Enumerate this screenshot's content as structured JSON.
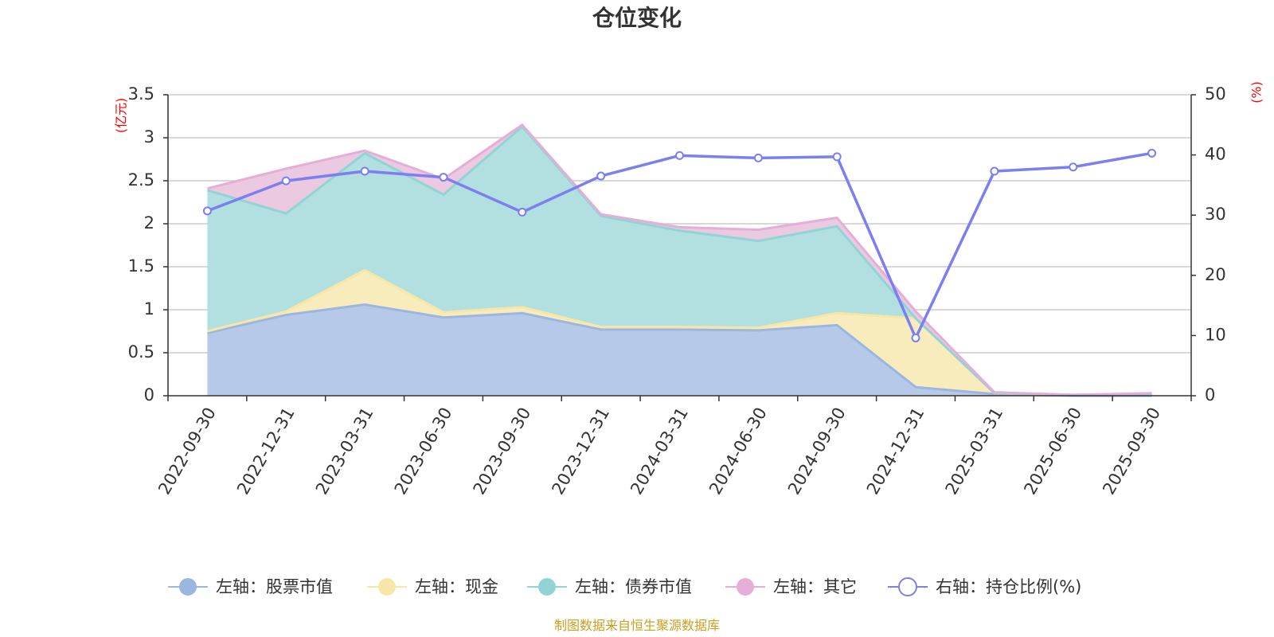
{
  "chart_data": {
    "type": "area",
    "title": "仓位变化",
    "categories": [
      "2022-09-30",
      "2022-12-31",
      "2023-03-31",
      "2023-06-30",
      "2023-09-30",
      "2023-12-31",
      "2024-03-31",
      "2024-06-30",
      "2024-09-30",
      "2024-12-31",
      "2025-03-31",
      "2025-06-30",
      "2025-09-30"
    ],
    "left_axis": {
      "unit": "(亿元)",
      "ylim": [
        0,
        3.5
      ],
      "ticks": [
        "0",
        "0.5",
        "1",
        "1.5",
        "2",
        "2.5",
        "3",
        "3.5"
      ]
    },
    "right_axis": {
      "unit": "(%)",
      "ylim": [
        0,
        50
      ],
      "ticks": [
        "0",
        "10",
        "20",
        "30",
        "40",
        "50"
      ]
    },
    "stacked_series": [
      {
        "name": "左轴：股票市值",
        "color": "#9bb6e0",
        "fill": "#b7c9e9",
        "values": [
          0.73,
          0.94,
          1.06,
          0.91,
          0.96,
          0.77,
          0.77,
          0.76,
          0.82,
          0.1,
          0.02,
          0.0,
          0.0
        ]
      },
      {
        "name": "左轴：现金",
        "color": "#f7e7a6",
        "fill": "#f8ecbc",
        "values": [
          0.02,
          0.04,
          0.4,
          0.06,
          0.07,
          0.03,
          0.03,
          0.03,
          0.14,
          0.8,
          0.01,
          0.01,
          0.02
        ]
      },
      {
        "name": "左轴：债券市值",
        "color": "#92d4d4",
        "fill": "#b2dfdf",
        "values": [
          1.64,
          1.14,
          1.36,
          1.37,
          2.1,
          1.29,
          1.12,
          1.01,
          1.01,
          0.0,
          0.0,
          0.0,
          0.0
        ]
      },
      {
        "name": "左轴：其它",
        "color": "#e5aed6",
        "fill": "#ebc9e1",
        "values": [
          0.02,
          0.52,
          0.03,
          0.18,
          0.02,
          0.02,
          0.04,
          0.13,
          0.1,
          0.08,
          0.01,
          0.0,
          0.01
        ]
      }
    ],
    "line_series": {
      "name": "右轴：持仓比例(%)",
      "color": "#7b7fef",
      "axis": "right",
      "values": [
        30.7,
        35.7,
        37.3,
        36.3,
        30.5,
        36.5,
        39.9,
        39.5,
        39.7,
        9.6,
        37.3,
        38.0,
        40.3
      ]
    },
    "legend_position": "bottom",
    "source": "制图数据来自恒生聚源数据库"
  }
}
